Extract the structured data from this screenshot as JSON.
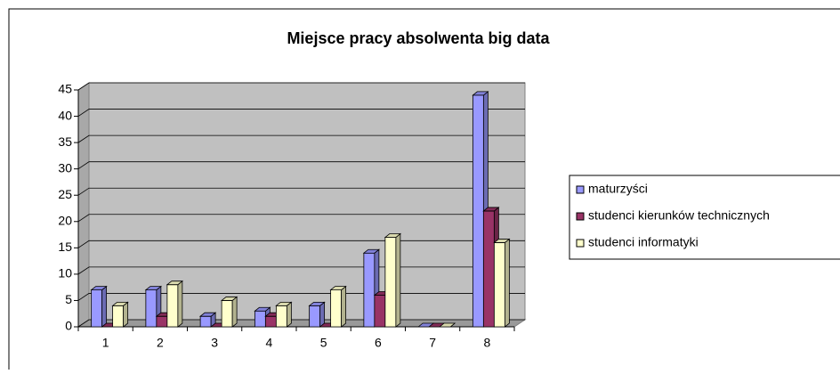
{
  "chart_data": {
    "type": "bar3d",
    "title": "Miejsce pracy absolwenta big data",
    "categories": [
      "1",
      "2",
      "3",
      "4",
      "5",
      "6",
      "7",
      "8"
    ],
    "series": [
      {
        "name": "maturzyści",
        "color": "#9999ff",
        "values": [
          7,
          7,
          2,
          3,
          4,
          14,
          0,
          44
        ]
      },
      {
        "name": "studenci kierunków technicznych",
        "color": "#993366",
        "values": [
          0,
          2,
          0,
          2,
          0,
          6,
          0,
          22
        ]
      },
      {
        "name": "studenci informatyki",
        "color": "#ffffcc",
        "values": [
          4,
          8,
          5,
          4,
          7,
          17,
          0,
          16
        ]
      }
    ],
    "ylim": [
      0,
      45
    ],
    "yticks": [
      0,
      5,
      10,
      15,
      20,
      25,
      30,
      35,
      40,
      45
    ],
    "grid": true
  }
}
